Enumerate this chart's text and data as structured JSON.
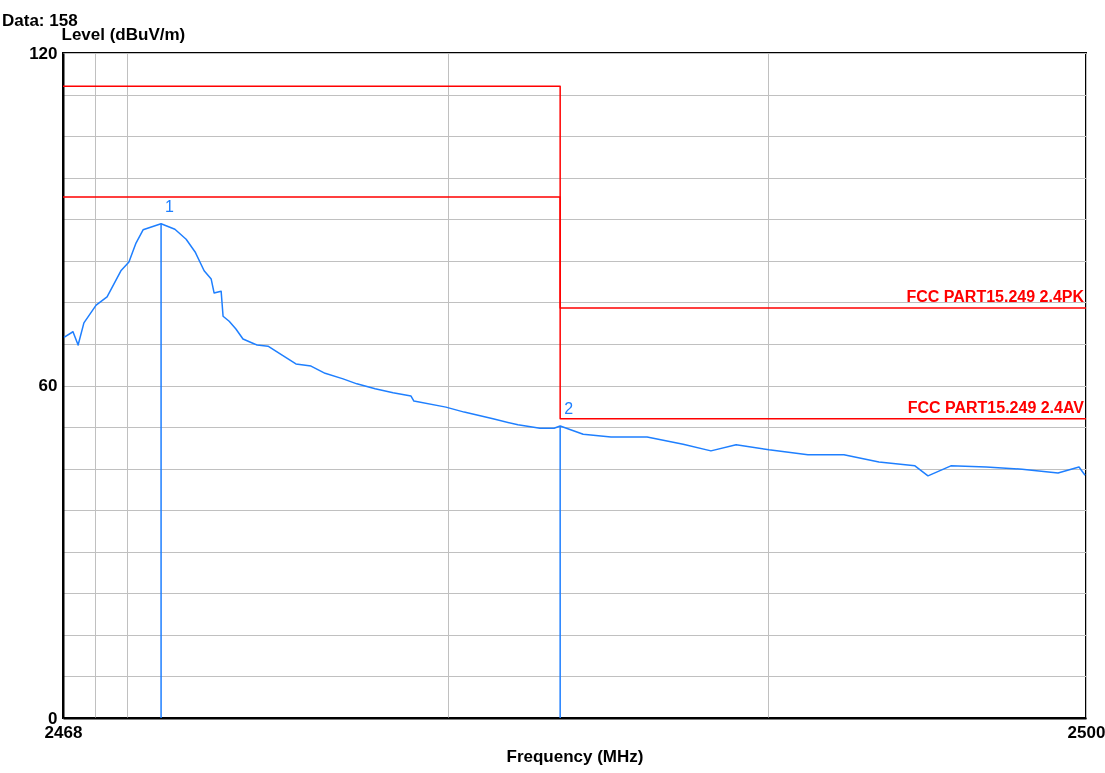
{
  "chart_data": {
    "type": "line",
    "title": "Data: 158",
    "xlabel": "Frequency (MHz)",
    "ylabel": "Level (dBuV/m)",
    "log": "x",
    "grid": true,
    "legend": false,
    "xlim": [
      2468,
      2500
    ],
    "xticks": [
      2468,
      {
        "value": 2469,
        "label": null
      },
      {
        "value": 2470,
        "label": null
      },
      {
        "value": 2480,
        "label": null
      },
      {
        "value": 2490,
        "label": null
      },
      2500
    ],
    "ylim": [
      0,
      120
    ],
    "yticks": [
      0,
      {
        "value": 7.5,
        "label": null
      },
      {
        "value": 15,
        "label": null
      },
      {
        "value": 22.5,
        "label": null
      },
      {
        "value": 30,
        "label": null
      },
      {
        "value": 37.5,
        "label": null
      },
      {
        "value": 45,
        "label": null
      },
      {
        "value": 52.5,
        "label": null
      },
      60,
      {
        "value": 67.5,
        "label": null
      },
      {
        "value": 75,
        "label": null
      },
      {
        "value": 82.5,
        "label": null
      },
      {
        "value": 90,
        "label": null
      },
      {
        "value": 97.5,
        "label": null
      },
      {
        "value": 105,
        "label": null
      },
      {
        "value": 112.5,
        "label": null
      },
      120
    ],
    "annotations": [
      {
        "text": "1",
        "x": 2471.05,
        "y": 89.2
      },
      {
        "text": "2",
        "x": 2483.5,
        "y": 52.7
      }
    ],
    "series": [
      {
        "color": "#1e7fff",
        "x": [
          2468.03,
          2468.31,
          2468.47,
          2468.65,
          2469.03,
          2469.37,
          2469.8,
          2470.05,
          2470.27,
          2470.49,
          2471.05,
          2471.48,
          2471.83,
          2472.11,
          2472.39,
          2472.61,
          2472.7,
          2472.92,
          2472.98,
          2473.17,
          2473.38,
          2473.6,
          2474.04,
          2474.38,
          2474.82,
          2475.25,
          2475.72,
          2476.16,
          2476.72,
          2477.15,
          2477.72,
          2478.28,
          2478.84,
          2478.93,
          2479.93,
          2480.5,
          2481.4,
          2482.18,
          2482.87,
          2483.31,
          2483.5,
          2484.22,
          2485.09,
          2486.22,
          2487.35,
          2488.22,
          2489.01,
          2490.04,
          2491.26,
          2492.39,
          2493.49,
          2494.62,
          2495.03,
          2495.75,
          2496.86,
          2497.99,
          2499.12,
          2499.78,
          2499.97
        ],
        "values": [
          68.7,
          69.7,
          67.3,
          71.3,
          74.5,
          76.0,
          80.7,
          82.3,
          85.7,
          88.1,
          89.2,
          88.2,
          86.4,
          84.1,
          80.7,
          79.2,
          76.7,
          77.0,
          72.5,
          71.6,
          70.2,
          68.4,
          67.3,
          67.1,
          65.5,
          63.9,
          63.5,
          62.2,
          61.2,
          60.3,
          59.4,
          58.7,
          58.1,
          57.2,
          56.1,
          55.2,
          54.0,
          52.9,
          52.3,
          52.3,
          52.7,
          51.2,
          50.7,
          50.7,
          49.4,
          48.2,
          49.3,
          48.4,
          47.5,
          47.5,
          46.2,
          45.5,
          43.7,
          45.5,
          45.3,
          44.9,
          44.2,
          45.3,
          43.8
        ]
      },
      {
        "type": "line",
        "color": "#1e7fff",
        "x": [
          2471.05,
          2471.05
        ],
        "values": [
          0,
          89.2
        ]
      },
      {
        "type": "line",
        "color": "#1e7fff",
        "x": [
          2483.5,
          2483.5
        ],
        "values": [
          0,
          52.7
        ]
      },
      {
        "type": "line",
        "name": "FCC PART15.249 2.4PK",
        "color": "#ff0000",
        "x": [
          2468,
          2483.5,
          2483.5,
          2500
        ],
        "values": [
          114,
          114,
          74,
          74
        ]
      },
      {
        "type": "line",
        "name": "FCC PART15.249 2.4AV",
        "color": "#ff0000",
        "x": [
          2468,
          2483.5,
          2483.5,
          2500
        ],
        "values": [
          94,
          94,
          54,
          54
        ]
      }
    ]
  }
}
